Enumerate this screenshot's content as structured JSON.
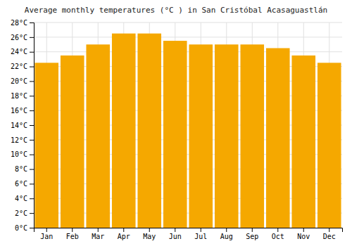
{
  "chart_data": {
    "type": "bar",
    "title": "Average monthly temperatures (°C ) in San Cristóbal Acasaguastlán",
    "categories": [
      "Jan",
      "Feb",
      "Mar",
      "Apr",
      "May",
      "Jun",
      "Jul",
      "Aug",
      "Sep",
      "Oct",
      "Nov",
      "Dec"
    ],
    "values": [
      22.5,
      23.5,
      25.0,
      26.5,
      26.5,
      25.5,
      25.0,
      25.0,
      25.0,
      24.5,
      23.5,
      22.5
    ],
    "color": "#F5A800",
    "ylim": [
      0,
      28
    ],
    "yticks": [
      {
        "value": 0,
        "label": "0°C"
      },
      {
        "value": 2,
        "label": "2°C"
      },
      {
        "value": 4,
        "label": "4°C"
      },
      {
        "value": 6,
        "label": "6°C"
      },
      {
        "value": 8,
        "label": "8°C"
      },
      {
        "value": 10,
        "label": "10°C"
      },
      {
        "value": 12,
        "label": "12°C"
      },
      {
        "value": 14,
        "label": "14°C"
      },
      {
        "value": 16,
        "label": "16°C"
      },
      {
        "value": 18,
        "label": "18°C"
      },
      {
        "value": 20,
        "label": "20°C"
      },
      {
        "value": 22,
        "label": "22°C"
      },
      {
        "value": 24,
        "label": "24°C"
      },
      {
        "value": 26,
        "label": "26°C"
      },
      {
        "value": 28,
        "label": "28°C"
      }
    ],
    "grid": true
  }
}
